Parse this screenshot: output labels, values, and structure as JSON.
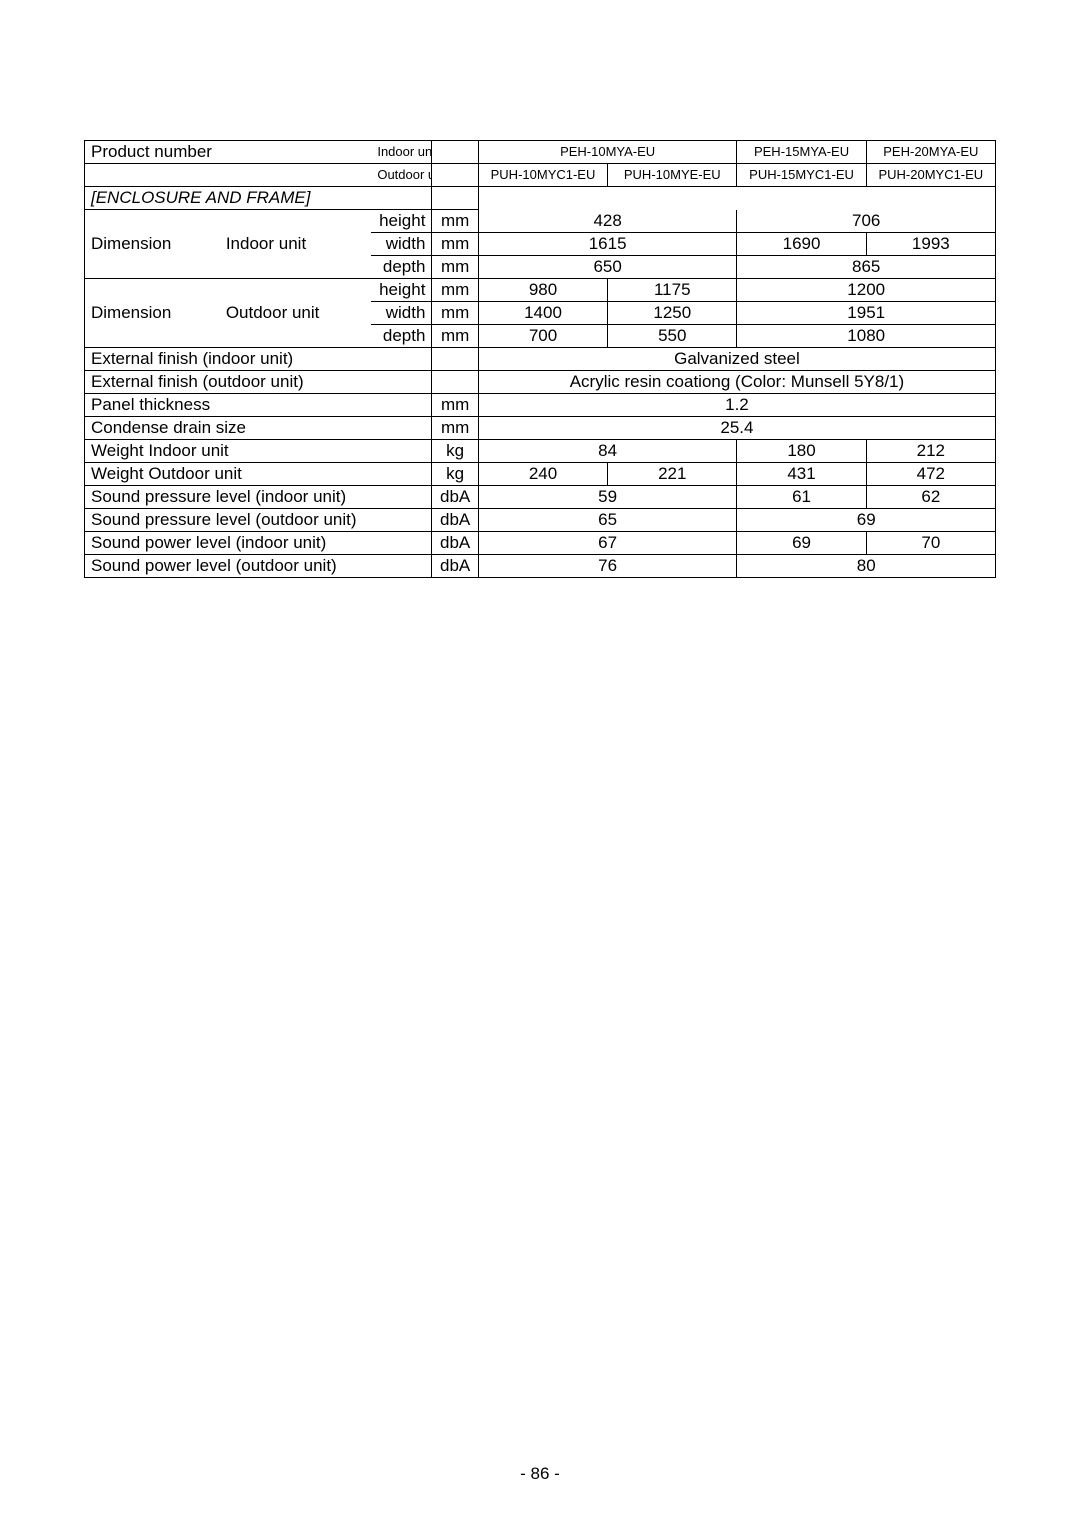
{
  "hdr": {
    "product_number": "Product number",
    "indoor_unit": "Indoor unit",
    "outdoor_unit": "Outdoor unit",
    "indoor_models": [
      "PEH-10MYA-EU",
      "PEH-15MYA-EU",
      "PEH-20MYA-EU"
    ],
    "outdoor_models": [
      "PUH-10MYC1-EU",
      "PUH-10MYE-EU",
      "PUH-15MYC1-EU",
      "PUH-20MYC1-EU"
    ]
  },
  "section": "[ENCLOSURE AND FRAME]",
  "dim_indoor": {
    "label": "Dimension",
    "sub": "Indoor unit",
    "height_label": "height",
    "height_unit": "mm",
    "height_a": "428",
    "height_b": "706",
    "width_label": "width",
    "width_unit": "mm",
    "width_a": "1615",
    "width_b": "1690",
    "width_c": "1993",
    "depth_label": "depth",
    "depth_unit": "mm",
    "depth_a": "650",
    "depth_b": "865"
  },
  "dim_outdoor": {
    "label": "Dimension",
    "sub": "Outdoor unit",
    "height_label": "height",
    "height_unit": "mm",
    "height_a": "980",
    "height_b": "1175",
    "height_c": "1200",
    "width_label": "width",
    "width_unit": "mm",
    "width_a": "1400",
    "width_b": "1250",
    "width_c": "1951",
    "depth_label": "depth",
    "depth_unit": "mm",
    "depth_a": "700",
    "depth_b": "550",
    "depth_c": "1080"
  },
  "ext_finish_in": {
    "label": "External finish  (indoor unit)",
    "value": "Galvanized steel"
  },
  "ext_finish_out": {
    "label": "External finish  (outdoor unit)",
    "value": "Acrylic resin coationg (Color: Munsell 5Y8/1)"
  },
  "panel_thick": {
    "label": "Panel thickness",
    "unit": "mm",
    "value": "1.2"
  },
  "drain": {
    "label": "Condense drain size",
    "unit": "mm",
    "value": "25.4"
  },
  "w_in": {
    "label": "Weight Indoor unit",
    "unit": "kg",
    "a": "84",
    "b": "180",
    "c": "212"
  },
  "w_out": {
    "label": "Weight Outdoor unit",
    "unit": "kg",
    "a": "240",
    "b": "221",
    "c": "431",
    "d": "472"
  },
  "spl_in": {
    "label": "Sound pressure level (indoor unit)",
    "unit": "dbA",
    "a": "59",
    "b": "61",
    "c": "62"
  },
  "spl_out": {
    "label": "Sound pressure level (outdoor unit)",
    "unit": "dbA",
    "a": "65",
    "b": "69"
  },
  "spw_in": {
    "label": "Sound power level (indoor unit)",
    "unit": "dbA",
    "a": "67",
    "b": "69",
    "c": "70"
  },
  "spw_out": {
    "label": "Sound power level (outdoor unit)",
    "unit": "dbA",
    "a": "76",
    "b": "80"
  },
  "footer": "- 86 -"
}
